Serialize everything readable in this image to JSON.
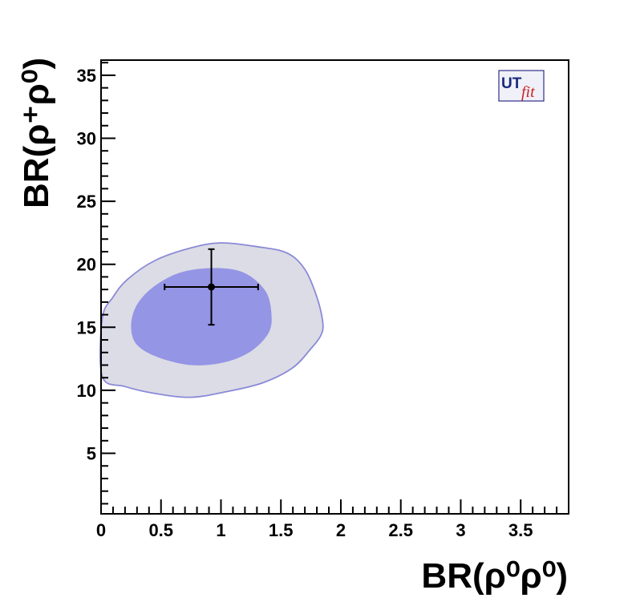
{
  "chart_data": {
    "type": "contour",
    "xlabel": "BR(ρ⁰ρ⁰)",
    "ylabel": "BR(ρ⁺ρ⁰)",
    "xlim": [
      0,
      3.9
    ],
    "ylim": [
      0.2,
      36.2
    ],
    "x_ticks": [
      0,
      0.5,
      1,
      1.5,
      2,
      2.5,
      3,
      3.5
    ],
    "x_tick_labels": [
      "0",
      "0.5",
      "1",
      "1.5",
      "2",
      "2.5",
      "3",
      "3.5"
    ],
    "y_ticks": [
      5,
      10,
      15,
      20,
      25,
      30,
      35
    ],
    "y_tick_labels": [
      "5",
      "10",
      "15",
      "20",
      "25",
      "30",
      "35"
    ],
    "grid": false,
    "colors": {
      "outer_region": "#dcdce6",
      "outer_stroke": "#8a8ad8",
      "inner_region": "#9595e6",
      "point": "#000000"
    },
    "regions": [
      {
        "level": "outer",
        "points": [
          [
            0.01,
            11.1
          ],
          [
            0.2,
            10.3
          ],
          [
            0.45,
            9.75
          ],
          [
            0.75,
            9.45
          ],
          [
            1.05,
            9.9
          ],
          [
            1.35,
            10.6
          ],
          [
            1.6,
            11.8
          ],
          [
            1.75,
            13.3
          ],
          [
            1.83,
            14.3
          ],
          [
            1.85,
            15.3
          ],
          [
            1.8,
            17.4
          ],
          [
            1.7,
            19.6
          ],
          [
            1.55,
            20.9
          ],
          [
            1.3,
            21.4
          ],
          [
            1.0,
            21.7
          ],
          [
            0.75,
            21.3
          ],
          [
            0.45,
            20.3
          ],
          [
            0.22,
            18.8
          ],
          [
            0.1,
            17.4
          ],
          [
            0.01,
            15.7
          ]
        ]
      },
      {
        "level": "inner",
        "points": [
          [
            0.25,
            15.1
          ],
          [
            0.3,
            13.6
          ],
          [
            0.48,
            12.6
          ],
          [
            0.75,
            12.0
          ],
          [
            1.02,
            12.2
          ],
          [
            1.25,
            13.1
          ],
          [
            1.4,
            14.6
          ],
          [
            1.42,
            16.2
          ],
          [
            1.37,
            17.9
          ],
          [
            1.2,
            19.3
          ],
          [
            0.97,
            19.7
          ],
          [
            0.68,
            19.4
          ],
          [
            0.45,
            18.3
          ],
          [
            0.3,
            16.8
          ]
        ]
      }
    ],
    "measurement": {
      "x": 0.92,
      "x_err_low": 0.39,
      "x_err_high": 0.39,
      "y": 18.2,
      "y_err_low": 3.0,
      "y_err_high": 3.0
    },
    "logo": {
      "text_main": "UT",
      "text_sub": "fit"
    }
  }
}
